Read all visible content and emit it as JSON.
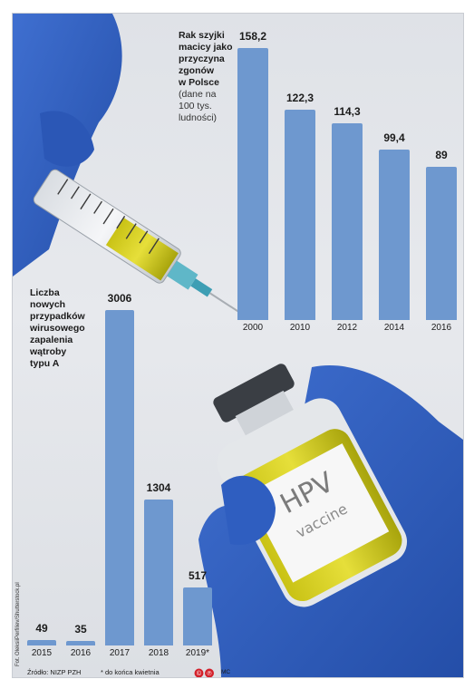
{
  "chart_data": [
    {
      "type": "bar",
      "title": "Rak szyjki macicy jako przyczyna zgonów w Polsce",
      "subtitle": "(dane na 100 tys. ludności)",
      "categories": [
        "2000",
        "2010",
        "2012",
        "2014",
        "2016"
      ],
      "values": [
        158.2,
        122.3,
        114.3,
        99.4,
        89
      ],
      "value_labels": [
        "158,2",
        "122,3",
        "114,3",
        "99,4",
        "89"
      ],
      "color": "#6e98cf"
    },
    {
      "type": "bar",
      "title": "Liczba nowych przypadków wirusowego zapalenia wątroby typu A",
      "categories": [
        "2015",
        "2016",
        "2017",
        "2018",
        "2019*"
      ],
      "values": [
        49,
        35,
        3006,
        1304,
        517
      ],
      "value_labels": [
        "49",
        "35",
        "3006",
        "1304",
        "517"
      ],
      "color": "#6e98cf"
    }
  ],
  "text": {
    "chart1_title_lines": [
      "Rak szyjki",
      "macicy jako",
      "przyczyna",
      "zgonów",
      "w Polsce"
    ],
    "chart1_subtitle_lines": [
      "(dane na",
      "100 tys.",
      "ludności)"
    ],
    "chart2_title_lines": [
      "Liczba",
      "nowych",
      "przypadków",
      "wirusowego",
      "zapalenia",
      "wątroby",
      "typu A"
    ],
    "source": "Źródło: NIZP PZH",
    "footnote": "* do końca kwietnia",
    "signature": "MC",
    "photo_credit": "Fot. OleksiiPerfiliev/Shutterstock.pl",
    "vial_label_main": "HPV",
    "vial_label_sub": "vaccine"
  }
}
